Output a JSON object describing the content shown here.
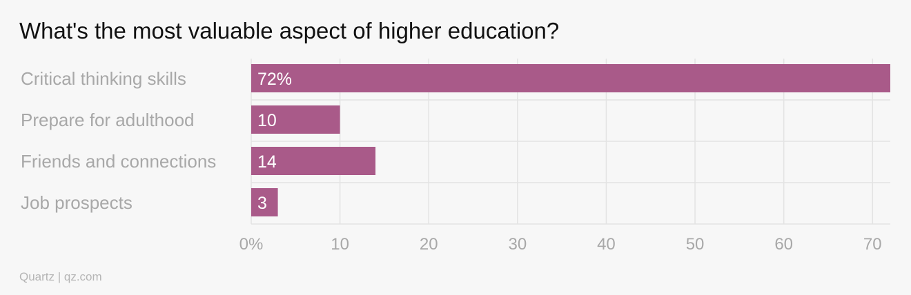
{
  "chart_data": {
    "type": "bar",
    "orientation": "horizontal",
    "title": "What's the most valuable aspect of higher education?",
    "categories": [
      "Critical thinking skills",
      "Prepare for adulthood",
      "Friends and connections",
      "Job prospects"
    ],
    "values": [
      72,
      10,
      14,
      3
    ],
    "value_labels": [
      "72%",
      "10",
      "14",
      "3"
    ],
    "xlim": [
      0,
      72
    ],
    "x_ticks": [
      0,
      10,
      20,
      30,
      40,
      50,
      60,
      70
    ],
    "x_tick_labels": [
      "0%",
      "10",
      "20",
      "30",
      "40",
      "50",
      "60",
      "70"
    ],
    "grid": true,
    "bar_color": "#a95a89"
  },
  "footer": {
    "source": "Quartz | qz.com"
  }
}
